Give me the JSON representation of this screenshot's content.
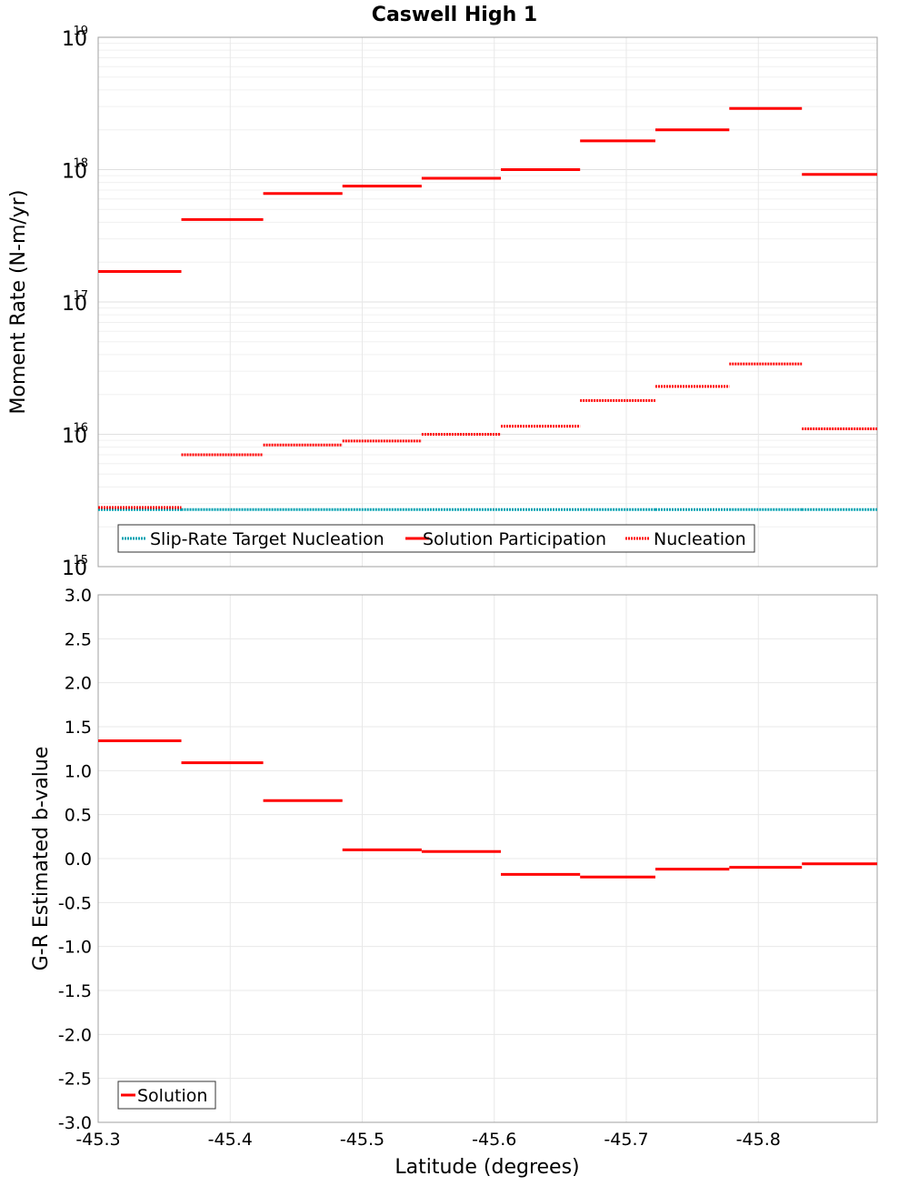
{
  "title": "Caswell High 1",
  "x_axis": {
    "label": "Latitude (degrees)",
    "range": [
      -45.3,
      -45.89
    ],
    "ticks": [
      "-45.3",
      "-45.4",
      "-45.5",
      "-45.6",
      "-45.7",
      "-45.8"
    ],
    "tick_values": [
      -45.3,
      -45.4,
      -45.5,
      -45.6,
      -45.7,
      -45.8
    ]
  },
  "colors": {
    "solution": "#ff0000",
    "target": "#00a0b0",
    "grid": "#e8e8e8",
    "axis": "#a0a0a0"
  },
  "chart_data": [
    {
      "type": "line",
      "title": "Caswell High 1",
      "ylabel": "Moment Rate (N-m/yr)",
      "yscale": "log",
      "ylim": [
        1000000000000000.0,
        1e+19
      ],
      "y_ticks": [
        {
          "base": "10",
          "exp": "15",
          "value": 1000000000000000.0
        },
        {
          "base": "10",
          "exp": "16",
          "value": 1e+16
        },
        {
          "base": "10",
          "exp": "17",
          "value": 1e+17
        },
        {
          "base": "10",
          "exp": "18",
          "value": 1e+18
        },
        {
          "base": "10",
          "exp": "19",
          "value": 1e+19
        }
      ],
      "grid": true,
      "legend": "bottom-left",
      "bin_edges": [
        -45.3,
        -45.363,
        -45.425,
        -45.485,
        -45.545,
        -45.605,
        -45.665,
        -45.722,
        -45.778,
        -45.833,
        -45.89
      ],
      "series": [
        {
          "name": "Slip-Rate Target Nucleation",
          "style": "dotted",
          "color": "#00a0b0",
          "values": [
            2700000000000000.0,
            2700000000000000.0,
            2700000000000000.0,
            2700000000000000.0,
            2700000000000000.0,
            2700000000000000.0,
            2700000000000000.0,
            2700000000000000.0,
            2700000000000000.0,
            2700000000000000.0
          ]
        },
        {
          "name": "Solution Participation",
          "style": "solid",
          "color": "#ff0000",
          "values": [
            1.7e+17,
            4.2e+17,
            6.6e+17,
            7.5e+17,
            8.6e+17,
            1e+18,
            1.65e+18,
            2e+18,
            2.9e+18,
            9.2e+17
          ]
        },
        {
          "name": "Nucleation",
          "style": "dotted",
          "color": "#ff0000",
          "values": [
            2800000000000000.0,
            7000000000000000.0,
            8300000000000000.0,
            8900000000000000.0,
            1e+16,
            1.15e+16,
            1.8e+16,
            2.3e+16,
            3.4e+16,
            1.1e+16
          ]
        }
      ]
    },
    {
      "type": "line",
      "ylabel": "G-R Estimated b-value",
      "ylim": [
        -3.0,
        3.0
      ],
      "y_ticks": [
        "-3.0",
        "-2.5",
        "-2.0",
        "-1.5",
        "-1.0",
        "-0.5",
        "0.0",
        "0.5",
        "1.0",
        "1.5",
        "2.0",
        "2.5",
        "3.0"
      ],
      "grid": true,
      "legend": "bottom-left",
      "bin_edges": [
        -45.3,
        -45.363,
        -45.425,
        -45.485,
        -45.545,
        -45.605,
        -45.665,
        -45.722,
        -45.778,
        -45.833,
        -45.89
      ],
      "series": [
        {
          "name": "Solution",
          "style": "solid",
          "color": "#ff0000",
          "values": [
            1.34,
            1.09,
            0.66,
            0.1,
            0.08,
            -0.18,
            -0.21,
            -0.12,
            -0.1,
            -0.06
          ]
        }
      ]
    }
  ]
}
